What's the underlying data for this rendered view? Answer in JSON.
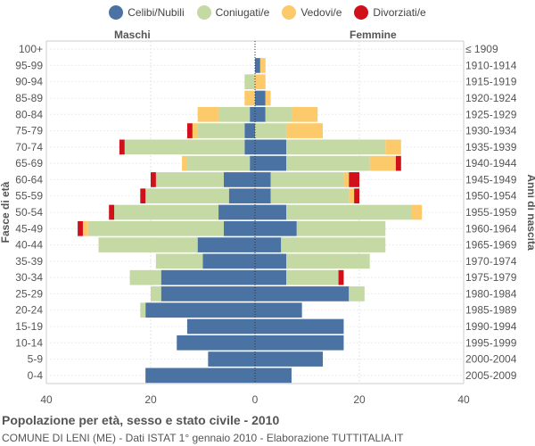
{
  "legend": [
    {
      "label": "Celibi/Nubili",
      "color": "#4a72a2"
    },
    {
      "label": "Coniugati/e",
      "color": "#c5d9a5"
    },
    {
      "label": "Vedovi/e",
      "color": "#fcc96b"
    },
    {
      "label": "Divorziati/e",
      "color": "#d0101a"
    }
  ],
  "headers": {
    "left": "Maschi",
    "right": "Femmine"
  },
  "footer": {
    "title": "Popolazione per età, sesso e stato civile - 2010",
    "subtitle": "COMUNE DI LENI (ME) - Dati ISTAT 1° gennaio 2010 - Elaborazione TUTTITALIA.IT"
  },
  "chart_data": {
    "type": "bar",
    "orientation": "horizontal-pyramid",
    "title": "Popolazione per età, sesso e stato civile - 2010",
    "ylabel_left": "Fasce di età",
    "ylabel_right": "Anni di nascita",
    "xlim": [
      -40,
      40
    ],
    "xticks": [
      "40",
      "20",
      "0",
      "20",
      "40"
    ],
    "series_names": [
      "Celibi/Nubili",
      "Coniugati/e",
      "Vedovi/e",
      "Divorziati/e"
    ],
    "categories": [
      "100+",
      "95-99",
      "90-94",
      "85-89",
      "80-84",
      "75-79",
      "70-74",
      "65-69",
      "60-64",
      "55-59",
      "50-54",
      "45-49",
      "40-44",
      "35-39",
      "30-34",
      "25-29",
      "20-24",
      "15-19",
      "10-14",
      "5-9",
      "0-4"
    ],
    "birth_years": [
      "≤ 1909",
      "1910-1914",
      "1915-1919",
      "1920-1924",
      "1925-1929",
      "1930-1934",
      "1935-1939",
      "1940-1944",
      "1945-1949",
      "1950-1954",
      "1955-1959",
      "1960-1964",
      "1965-1969",
      "1970-1974",
      "1975-1979",
      "1980-1984",
      "1985-1989",
      "1990-1994",
      "1995-1999",
      "2000-2004",
      "2005-2009"
    ],
    "males": [
      [
        0,
        0,
        0,
        0
      ],
      [
        0,
        0,
        0,
        0
      ],
      [
        0,
        2,
        0,
        0
      ],
      [
        0,
        0,
        2,
        0
      ],
      [
        1,
        6,
        4,
        0
      ],
      [
        2,
        9,
        1,
        1
      ],
      [
        2,
        23,
        0,
        1
      ],
      [
        1,
        12,
        1,
        0
      ],
      [
        6,
        13,
        0,
        1
      ],
      [
        5,
        16,
        0,
        1
      ],
      [
        7,
        20,
        0,
        1
      ],
      [
        6,
        26,
        1,
        1
      ],
      [
        11,
        19,
        0,
        0
      ],
      [
        10,
        9,
        0,
        0
      ],
      [
        18,
        6,
        0,
        0
      ],
      [
        18,
        2,
        0,
        0
      ],
      [
        21,
        1,
        0,
        0
      ],
      [
        13,
        0,
        0,
        0
      ],
      [
        15,
        0,
        0,
        0
      ],
      [
        9,
        0,
        0,
        0
      ],
      [
        21,
        0,
        0,
        0
      ]
    ],
    "females": [
      [
        0,
        0,
        0,
        0
      ],
      [
        1,
        0,
        1,
        0
      ],
      [
        0,
        0,
        2,
        0
      ],
      [
        2,
        0,
        1,
        0
      ],
      [
        2,
        5,
        5,
        0
      ],
      [
        0,
        6,
        7,
        0
      ],
      [
        6,
        19,
        3,
        0
      ],
      [
        6,
        16,
        5,
        1
      ],
      [
        3,
        14,
        1,
        2
      ],
      [
        3,
        15,
        1,
        1
      ],
      [
        6,
        24,
        2,
        0
      ],
      [
        8,
        17,
        0,
        0
      ],
      [
        5,
        20,
        0,
        0
      ],
      [
        6,
        16,
        0,
        0
      ],
      [
        6,
        10,
        0,
        1
      ],
      [
        18,
        3,
        0,
        0
      ],
      [
        9,
        0,
        0,
        0
      ],
      [
        17,
        0,
        0,
        0
      ],
      [
        17,
        0,
        0,
        0
      ],
      [
        13,
        0,
        0,
        0
      ],
      [
        7,
        0,
        0,
        0
      ]
    ]
  }
}
